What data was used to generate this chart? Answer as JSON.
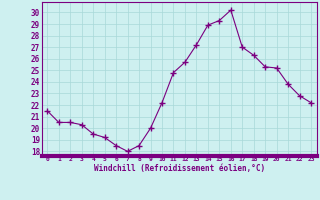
{
  "x": [
    0,
    1,
    2,
    3,
    4,
    5,
    6,
    7,
    8,
    9,
    10,
    11,
    12,
    13,
    14,
    15,
    16,
    17,
    18,
    19,
    20,
    21,
    22,
    23
  ],
  "y": [
    21.5,
    20.5,
    20.5,
    20.3,
    19.5,
    19.2,
    18.5,
    18.0,
    18.5,
    20.0,
    22.2,
    24.8,
    25.7,
    27.2,
    28.9,
    29.3,
    30.2,
    27.0,
    26.3,
    25.3,
    25.2,
    23.8,
    22.8,
    22.2
  ],
  "line_color": "#7b0080",
  "marker": "s",
  "markersize": 2,
  "bg_color": "#cef0f0",
  "grid_color": "#a8d8d8",
  "xlabel": "Windchill (Refroidissement éolien,°C)",
  "ytick_labels": [
    "18",
    "19",
    "20",
    "21",
    "22",
    "23",
    "24",
    "25",
    "26",
    "27",
    "28",
    "29",
    "30"
  ],
  "ytick_vals": [
    18,
    19,
    20,
    21,
    22,
    23,
    24,
    25,
    26,
    27,
    28,
    29,
    30
  ],
  "ylim": [
    17.6,
    30.9
  ],
  "xlim": [
    -0.5,
    23.5
  ],
  "xtick_labels": [
    "0",
    "1",
    "2",
    "3",
    "4",
    "5",
    "6",
    "7",
    "8",
    "9",
    "10",
    "11",
    "12",
    "13",
    "14",
    "15",
    "16",
    "17",
    "18",
    "19",
    "20",
    "21",
    "22",
    "23"
  ],
  "label_color": "#7b0080",
  "tick_color": "#7b0080",
  "spine_color": "#7b0080",
  "bottom_bar_color": "#7b0080"
}
